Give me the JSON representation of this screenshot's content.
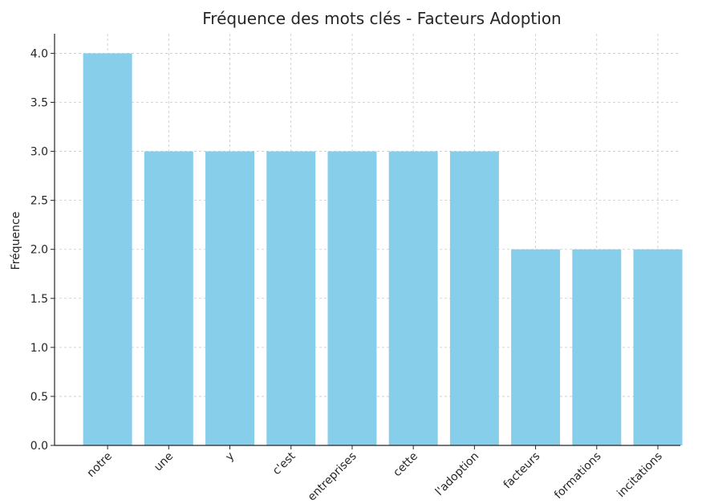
{
  "chart_data": {
    "type": "bar",
    "title": "Fréquence des mots clés - Facteurs Adoption",
    "y_label": "Fréquence",
    "categories": [
      "notre",
      "une",
      "y",
      "c'est",
      "entreprises",
      "cette",
      "l'adoption",
      "facteurs",
      "formations",
      "incitations"
    ],
    "values": [
      4,
      3,
      3,
      3,
      3,
      3,
      3,
      2,
      2,
      2
    ],
    "color": "#87ceeb",
    "ylim": [
      0,
      4.2
    ],
    "yticks": [
      {
        "value": 0,
        "label": "0.0"
      },
      {
        "value": 0.5,
        "label": "0.5"
      },
      {
        "value": 1,
        "label": "1.0"
      },
      {
        "value": 1.5,
        "label": "1.5"
      },
      {
        "value": 2,
        "label": "2.0"
      },
      {
        "value": 2.5,
        "label": "2.5"
      },
      {
        "value": 3,
        "label": "3.0"
      },
      {
        "value": 3.5,
        "label": "3.5"
      },
      {
        "value": 4,
        "label": "4.0"
      }
    ],
    "grid": true
  }
}
